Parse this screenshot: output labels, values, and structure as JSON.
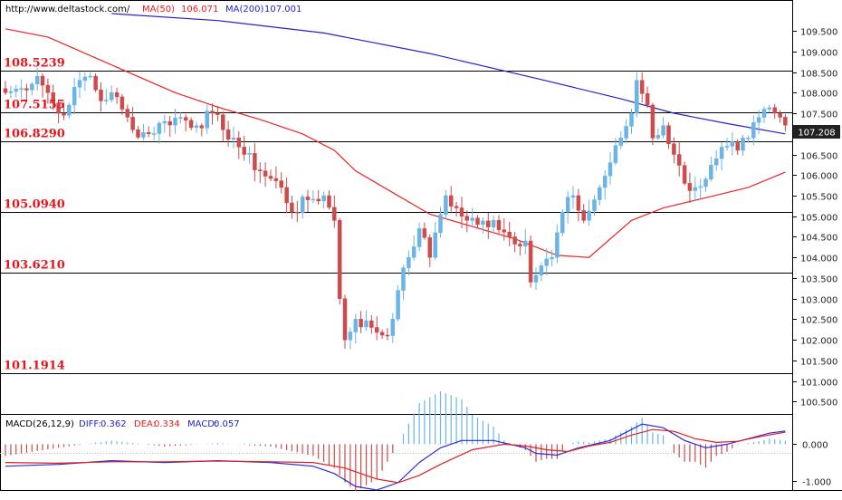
{
  "header": {
    "url": "http://www.deltastock.com/",
    "ma50_label": "MA(50)",
    "ma50_value": "106.071",
    "ma200_label": "MA(200)",
    "ma200_value": "107.001"
  },
  "colors": {
    "bull": "#6ab4e6",
    "bear": "#cc4b4b",
    "ma50": "#ee2222",
    "ma200": "#2222cc",
    "level": "#e8141c",
    "diff": "#2a2ae0",
    "dea": "#e02020"
  },
  "macd_header": {
    "name": "MACD(26,12,9)",
    "diff_label": "DIFF:",
    "diff_value": "0.362",
    "dea_label": "DEA:",
    "dea_value": "0.334",
    "macd_label": "MACD:",
    "macd_value": "0.057"
  },
  "chart_data": {
    "type": "candlestick",
    "ylim": [
      100.2,
      110.25
    ],
    "price_ticks": [
      "109.500",
      "109.000",
      "108.500",
      "108.000",
      "107.500",
      "107.000",
      "106.500",
      "106.000",
      "105.500",
      "105.000",
      "104.500",
      "104.000",
      "103.500",
      "103.000",
      "102.500",
      "102.000",
      "101.500",
      "101.000",
      "100.500"
    ],
    "current_price": "107.208",
    "levels": [
      {
        "label": "108.5239",
        "value": 108.5239
      },
      {
        "label": "107.5155",
        "value": 107.5155
      },
      {
        "label": "106.8290",
        "value": 106.829
      },
      {
        "label": "105.0940",
        "value": 105.094
      },
      {
        "label": "103.6210",
        "value": 103.621
      },
      {
        "label": "101.1914",
        "value": 101.1914
      }
    ],
    "close_anchors": [
      [
        0,
        108.0
      ],
      [
        3,
        108.1
      ],
      [
        6,
        108.4
      ],
      [
        8,
        108.0
      ],
      [
        10,
        107.5
      ],
      [
        12,
        107.7
      ],
      [
        14,
        108.3
      ],
      [
        16,
        108.4
      ],
      [
        18,
        107.8
      ],
      [
        20,
        108.0
      ],
      [
        22,
        107.6
      ],
      [
        24,
        107.1
      ],
      [
        27,
        107.0
      ],
      [
        30,
        107.3
      ],
      [
        33,
        107.4
      ],
      [
        36,
        107.2
      ],
      [
        39,
        107.5
      ],
      [
        41,
        107.1
      ],
      [
        43,
        106.9
      ],
      [
        45,
        106.5
      ],
      [
        48,
        106.1
      ],
      [
        52,
        105.7
      ],
      [
        54,
        105.1
      ],
      [
        57,
        105.4
      ],
      [
        60,
        105.5
      ],
      [
        62,
        104.9
      ],
      [
        63,
        103.0
      ],
      [
        64,
        102.0
      ],
      [
        66,
        102.5
      ],
      [
        69,
        102.3
      ],
      [
        72,
        102.1
      ],
      [
        74,
        103.2
      ],
      [
        76,
        104.0
      ],
      [
        78,
        104.7
      ],
      [
        80,
        104.0
      ],
      [
        81,
        104.6
      ],
      [
        83,
        105.5
      ],
      [
        86,
        105.0
      ],
      [
        89,
        104.8
      ],
      [
        92,
        104.9
      ],
      [
        95,
        104.5
      ],
      [
        98,
        104.4
      ],
      [
        99,
        103.4
      ],
      [
        101,
        103.8
      ],
      [
        103,
        104.0
      ],
      [
        105,
        105.1
      ],
      [
        107,
        105.5
      ],
      [
        109,
        104.9
      ],
      [
        111,
        105.4
      ],
      [
        114,
        106.3
      ],
      [
        116,
        106.9
      ],
      [
        118,
        107.5
      ],
      [
        119,
        108.3
      ],
      [
        121,
        107.7
      ],
      [
        122,
        106.9
      ],
      [
        124,
        107.2
      ],
      [
        126,
        106.5
      ],
      [
        128,
        105.8
      ],
      [
        130,
        105.7
      ],
      [
        132,
        105.9
      ],
      [
        134,
        106.4
      ],
      [
        136,
        106.7
      ],
      [
        138,
        106.6
      ],
      [
        140,
        106.9
      ],
      [
        142,
        107.4
      ],
      [
        143,
        107.6
      ],
      [
        145,
        107.5
      ],
      [
        147,
        107.21
      ]
    ],
    "ma50_points": [
      [
        0,
        109.55
      ],
      [
        8,
        109.35
      ],
      [
        16,
        108.9
      ],
      [
        24,
        108.45
      ],
      [
        32,
        108.0
      ],
      [
        40,
        107.65
      ],
      [
        48,
        107.35
      ],
      [
        56,
        107.0
      ],
      [
        62,
        106.6
      ],
      [
        66,
        106.1
      ],
      [
        72,
        105.65
      ],
      [
        80,
        105.05
      ],
      [
        88,
        104.75
      ],
      [
        96,
        104.45
      ],
      [
        104,
        104.05
      ],
      [
        110,
        104.0
      ],
      [
        118,
        104.9
      ],
      [
        124,
        105.2
      ],
      [
        132,
        105.45
      ],
      [
        140,
        105.7
      ],
      [
        147,
        106.07
      ]
    ],
    "ma200_points": [
      [
        20,
        109.92
      ],
      [
        40,
        109.75
      ],
      [
        60,
        109.45
      ],
      [
        80,
        108.95
      ],
      [
        100,
        108.35
      ],
      [
        116,
        107.85
      ],
      [
        126,
        107.5
      ],
      [
        136,
        107.25
      ],
      [
        147,
        107.0
      ]
    ],
    "macd_ylim": [
      -1.25,
      0.8
    ],
    "macd_ticks": [
      {
        "label": "0.000",
        "value": 0.0
      },
      {
        "label": "-1.000",
        "value": -1.0
      }
    ],
    "diff_points": [
      [
        0,
        -0.6
      ],
      [
        10,
        -0.55
      ],
      [
        20,
        -0.45
      ],
      [
        30,
        -0.5
      ],
      [
        40,
        -0.45
      ],
      [
        50,
        -0.5
      ],
      [
        58,
        -0.6
      ],
      [
        62,
        -0.8
      ],
      [
        66,
        -1.15
      ],
      [
        70,
        -1.25
      ],
      [
        74,
        -1.05
      ],
      [
        78,
        -0.5
      ],
      [
        82,
        -0.1
      ],
      [
        86,
        0.1
      ],
      [
        92,
        0.1
      ],
      [
        98,
        -0.1
      ],
      [
        100,
        -0.25
      ],
      [
        104,
        -0.3
      ],
      [
        108,
        -0.1
      ],
      [
        114,
        0.1
      ],
      [
        118,
        0.4
      ],
      [
        120,
        0.55
      ],
      [
        124,
        0.45
      ],
      [
        128,
        0.1
      ],
      [
        132,
        -0.1
      ],
      [
        136,
        0.0
      ],
      [
        140,
        0.15
      ],
      [
        144,
        0.3
      ],
      [
        147,
        0.36
      ]
    ],
    "dea_points": [
      [
        0,
        -0.5
      ],
      [
        10,
        -0.52
      ],
      [
        20,
        -0.48
      ],
      [
        30,
        -0.48
      ],
      [
        40,
        -0.46
      ],
      [
        50,
        -0.48
      ],
      [
        58,
        -0.5
      ],
      [
        64,
        -0.65
      ],
      [
        70,
        -0.95
      ],
      [
        74,
        -1.05
      ],
      [
        78,
        -0.85
      ],
      [
        82,
        -0.55
      ],
      [
        88,
        -0.15
      ],
      [
        94,
        0.0
      ],
      [
        98,
        -0.05
      ],
      [
        102,
        -0.15
      ],
      [
        106,
        -0.2
      ],
      [
        110,
        -0.05
      ],
      [
        114,
        0.05
      ],
      [
        118,
        0.25
      ],
      [
        122,
        0.4
      ],
      [
        126,
        0.35
      ],
      [
        130,
        0.15
      ],
      [
        134,
        0.05
      ],
      [
        138,
        0.08
      ],
      [
        142,
        0.2
      ],
      [
        147,
        0.33
      ]
    ]
  }
}
